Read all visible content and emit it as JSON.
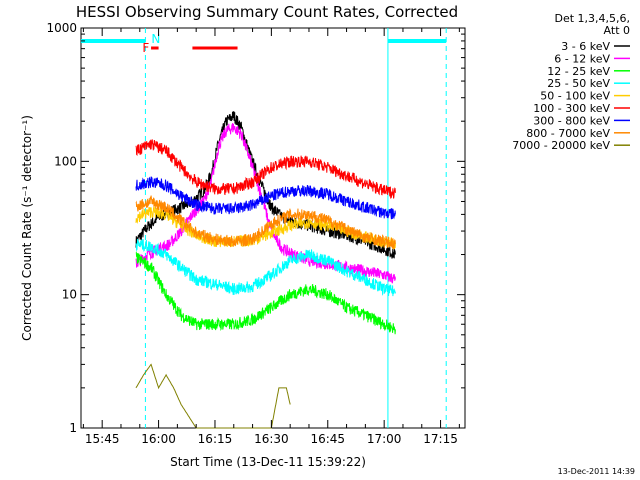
{
  "chart_data": {
    "type": "line",
    "title": "HESSI Observing Summary Count Rates, Corrected",
    "xlabel": "Start Time (13-Dec-11 15:39:22)",
    "ylabel": "Corrected Count Rate (s⁻¹ detector⁻¹)",
    "y_scale": "log",
    "ylim": [
      1,
      1000
    ],
    "xlim": [
      "15:39:22",
      "17:21:30"
    ],
    "x_ticks": [
      "15:45",
      "16:00",
      "16:15",
      "16:30",
      "16:45",
      "17:00",
      "17:15"
    ],
    "y_ticks": [
      "1",
      "10",
      "100",
      "1000"
    ],
    "legend_header": [
      "Det 1,3,4,5,6,",
      "Att 0"
    ],
    "legend_placement": "right",
    "footer": "13-Dec-2011 14:39",
    "series": [
      {
        "name": "3 - 6 keV",
        "color": "#000000",
        "x": [
          "15:54",
          "15:57",
          "16:00",
          "16:03",
          "16:06",
          "16:09",
          "16:12",
          "16:14",
          "16:16",
          "16:18",
          "16:20",
          "16:22",
          "16:24",
          "16:27",
          "16:30",
          "16:33",
          "16:36",
          "16:40",
          "16:45",
          "16:50",
          "16:55",
          "17:00",
          "17:03"
        ],
        "y": [
          25,
          32,
          38,
          42,
          45,
          50,
          60,
          80,
          140,
          200,
          220,
          180,
          120,
          70,
          45,
          38,
          35,
          33,
          30,
          28,
          25,
          22,
          20
        ]
      },
      {
        "name": "6 - 12 keV",
        "color": "#ff00ff",
        "x": [
          "15:54",
          "15:57",
          "16:00",
          "16:03",
          "16:06",
          "16:09",
          "16:12",
          "16:14",
          "16:16",
          "16:18",
          "16:20",
          "16:22",
          "16:24",
          "16:27",
          "16:30",
          "16:33",
          "16:36",
          "16:40",
          "16:45",
          "16:50",
          "16:55",
          "17:00",
          "17:03"
        ],
        "y": [
          17,
          20,
          22,
          24,
          30,
          40,
          50,
          70,
          130,
          170,
          180,
          160,
          110,
          60,
          30,
          22,
          20,
          18,
          17,
          16,
          15,
          14,
          13
        ]
      },
      {
        "name": "12 - 25 keV",
        "color": "#00ff00",
        "x": [
          "15:54",
          "15:58",
          "16:02",
          "16:06",
          "16:10",
          "16:15",
          "16:20",
          "16:25",
          "16:30",
          "16:35",
          "16:40",
          "16:45",
          "16:50",
          "16:55",
          "17:00",
          "17:03"
        ],
        "y": [
          19,
          16,
          10,
          7,
          6,
          6,
          6,
          6.5,
          8,
          10,
          11,
          10,
          8,
          7,
          6,
          5.5
        ]
      },
      {
        "name": "25 - 50 keV",
        "color": "#00ffff",
        "x": [
          "15:54",
          "15:58",
          "16:02",
          "16:06",
          "16:10",
          "16:15",
          "16:20",
          "16:25",
          "16:30",
          "16:35",
          "16:40",
          "16:45",
          "16:50",
          "16:55",
          "17:00",
          "17:03"
        ],
        "y": [
          24,
          23,
          20,
          16,
          13,
          12,
          11,
          11.5,
          14,
          18,
          20,
          18,
          15,
          13,
          11,
          10.5
        ]
      },
      {
        "name": "50 - 100 keV",
        "color": "#ffcc00",
        "x": [
          "15:54",
          "15:58",
          "16:02",
          "16:06",
          "16:10",
          "16:15",
          "16:20",
          "16:25",
          "16:30",
          "16:35",
          "16:40",
          "16:45",
          "16:50",
          "16:55",
          "17:00",
          "17:03"
        ],
        "y": [
          38,
          42,
          40,
          33,
          28,
          25,
          25,
          25.5,
          29,
          33,
          35,
          33,
          30,
          27,
          25,
          24
        ]
      },
      {
        "name": "100 - 300 keV",
        "color": "#ff0000",
        "x": [
          "15:54",
          "15:58",
          "16:02",
          "16:06",
          "16:10",
          "16:15",
          "16:20",
          "16:25",
          "16:30",
          "16:35",
          "16:40",
          "16:45",
          "16:50",
          "16:55",
          "17:00",
          "17:03"
        ],
        "y": [
          120,
          135,
          120,
          90,
          70,
          62,
          62,
          70,
          90,
          100,
          100,
          90,
          78,
          68,
          60,
          58
        ]
      },
      {
        "name": "300 - 800 keV",
        "color": "#0000ff",
        "x": [
          "15:54",
          "15:58",
          "16:02",
          "16:06",
          "16:10",
          "16:15",
          "16:20",
          "16:25",
          "16:30",
          "16:35",
          "16:40",
          "16:45",
          "16:50",
          "16:55",
          "17:00",
          "17:03"
        ],
        "y": [
          66,
          70,
          66,
          55,
          47,
          44,
          44,
          47,
          55,
          60,
          60,
          57,
          50,
          45,
          41,
          40
        ]
      },
      {
        "name": "800 - 7000 keV",
        "color": "#ff8800",
        "x": [
          "15:54",
          "15:58",
          "16:02",
          "16:06",
          "16:10",
          "16:15",
          "16:20",
          "16:25",
          "16:30",
          "16:35",
          "16:40",
          "16:45",
          "16:50",
          "16:55",
          "17:00",
          "17:03"
        ],
        "y": [
          46,
          50,
          45,
          36,
          29,
          26,
          25,
          26,
          34,
          40,
          40,
          36,
          31,
          27,
          25,
          24
        ]
      },
      {
        "name": "7000 - 20000 keV",
        "color": "#808000",
        "x": [
          "15:54",
          "15:56",
          "15:58",
          "16:00",
          "16:02",
          "16:04",
          "16:06",
          "16:10",
          "16:30",
          "16:32",
          "16:34",
          "16:35"
        ],
        "y": [
          2,
          2.5,
          3,
          2,
          2.5,
          2,
          1.5,
          1,
          1,
          2,
          2,
          1.5
        ]
      }
    ],
    "flags": {
      "N_label": "N",
      "F_label": "F",
      "saa_color": "#00ffff",
      "flare_color": "#ff0000",
      "saa_segments": [
        [
          "15:39:22",
          "15:56:30"
        ],
        [
          "17:01",
          "17:16:30"
        ]
      ],
      "flare_segments": [
        [
          "15:58",
          "16:00"
        ],
        [
          "16:09",
          "16:21"
        ]
      ],
      "night_lines": [
        "15:56:30",
        "17:01",
        "17:16:30"
      ]
    }
  }
}
